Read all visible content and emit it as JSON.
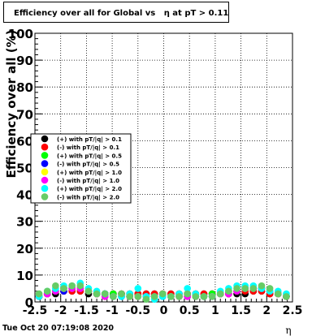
{
  "chart_data": {
    "type": "scatter",
    "title": "Efficiency over all for Global vs   η at pT > 0.11",
    "xlabel": "η",
    "ylabel": "Efficiency over all (%)",
    "xlim": [
      -2.5,
      2.5
    ],
    "ylim": [
      0,
      100
    ],
    "x_ticks": [
      -2.5,
      -2,
      -1.5,
      -1,
      -0.5,
      0,
      0.5,
      1,
      1.5,
      2,
      2.5
    ],
    "y_ticks": [
      0,
      10,
      20,
      30,
      40,
      50,
      60,
      70,
      80,
      90,
      100
    ],
    "grid": true,
    "legend_position": "left-middle",
    "x": [
      -2.42,
      -2.26,
      -2.1,
      -1.94,
      -1.78,
      -1.62,
      -1.46,
      -1.3,
      -1.14,
      -0.98,
      -0.82,
      -0.66,
      -0.5,
      -0.34,
      -0.18,
      -0.02,
      0.14,
      0.3,
      0.46,
      0.62,
      0.78,
      0.94,
      1.1,
      1.26,
      1.42,
      1.58,
      1.74,
      1.9,
      2.06,
      2.22,
      2.38
    ],
    "series": [
      {
        "name": "(+) with pT/|q| > 0.1",
        "color": "#000000",
        "marker": "circle",
        "values": [
          2,
          3,
          3,
          4,
          4,
          4,
          3,
          3,
          3,
          3,
          3,
          3,
          3,
          3,
          3,
          3,
          3,
          3,
          3,
          3,
          3,
          3,
          3,
          3,
          3,
          3,
          4,
          4,
          3,
          3,
          2
        ]
      },
      {
        "name": "(-) with pT/|q| > 0.1",
        "color": "#ff0000",
        "marker": "circle",
        "values": [
          2,
          3,
          4,
          4,
          4,
          4,
          4,
          3,
          3,
          3,
          3,
          3,
          3,
          3,
          3,
          3,
          3,
          3,
          3,
          3,
          3,
          3,
          3,
          3,
          4,
          4,
          4,
          4,
          3,
          3,
          2
        ]
      },
      {
        "name": "(+) with pT/|q| > 0.5",
        "color": "#00ff00",
        "marker": "circle",
        "values": [
          2,
          3,
          4,
          5,
          5,
          5,
          4,
          3,
          3,
          3,
          2,
          2,
          2,
          2,
          2,
          2,
          2,
          2,
          2,
          2,
          2,
          3,
          3,
          4,
          4,
          5,
          5,
          5,
          4,
          3,
          2
        ]
      },
      {
        "name": "(-) with pT/|q| > 0.5",
        "color": "#0000ff",
        "marker": "circle",
        "values": [
          2,
          3,
          4,
          4,
          5,
          5,
          4,
          3,
          3,
          2,
          2,
          2,
          2,
          2,
          2,
          2,
          2,
          2,
          2,
          2,
          2,
          2,
          3,
          4,
          4,
          5,
          5,
          5,
          4,
          3,
          2
        ]
      },
      {
        "name": "(+) with pT/|q| > 1.0",
        "color": "#ffff00",
        "marker": "circle",
        "values": [
          2,
          3,
          4,
          5,
          5,
          5,
          4,
          3,
          2,
          2,
          2,
          2,
          2,
          2,
          2,
          2,
          2,
          2,
          2,
          2,
          2,
          2,
          3,
          4,
          4,
          5,
          5,
          5,
          4,
          3,
          2
        ]
      },
      {
        "name": "(-) with pT/|q| > 1.0",
        "color": "#ff00ff",
        "marker": "circle",
        "values": [
          2,
          3,
          4,
          5,
          5,
          5,
          4,
          3,
          2,
          2,
          2,
          2,
          2,
          2,
          2,
          2,
          2,
          2,
          2,
          2,
          2,
          2,
          3,
          3,
          4,
          5,
          5,
          5,
          4,
          3,
          2
        ]
      },
      {
        "name": "(+) with pT/|q| > 2.0",
        "color": "#00ffff",
        "marker": "circle",
        "values": [
          2,
          4,
          5,
          6,
          6,
          7,
          5,
          4,
          3,
          2,
          2,
          3,
          5,
          2,
          1,
          2,
          2,
          3,
          5,
          3,
          2,
          2,
          4,
          5,
          6,
          6,
          6,
          5,
          4,
          4,
          3
        ]
      },
      {
        "name": "(-) with pT/|q| > 2.0",
        "color": "#66cc66",
        "marker": "circle",
        "values": [
          3,
          4,
          6,
          5,
          6,
          6,
          4,
          3,
          3,
          2,
          3,
          2,
          2,
          1,
          2,
          3,
          2,
          2,
          3,
          2,
          2,
          2,
          3,
          4,
          5,
          5,
          5,
          6,
          5,
          3,
          2
        ]
      }
    ]
  },
  "footer": {
    "date": "Tue Oct 20 07:19:08 2020"
  }
}
